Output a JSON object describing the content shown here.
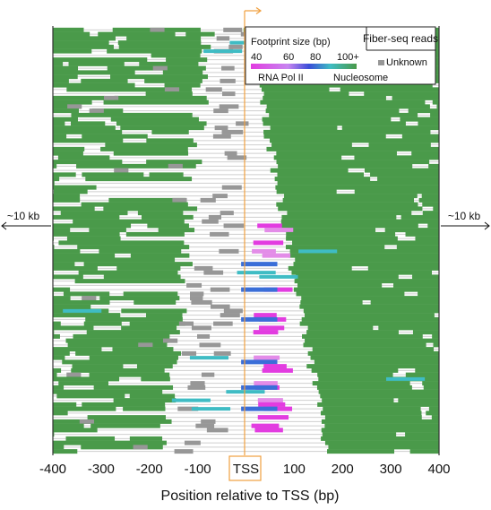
{
  "chart_data": {
    "type": "track_plot",
    "xlabel": "Position relative to TSS (bp)",
    "xlim": [
      -400,
      400
    ],
    "x_ticks": [
      -400,
      -300,
      -200,
      -100,
      0,
      100,
      200,
      300,
      400
    ],
    "x_tick_labels": [
      "-400",
      "-300",
      "-200",
      "-100",
      "TSS",
      "100",
      "200",
      "300",
      "400"
    ],
    "flank_left": "~10 kb",
    "flank_right": "~10 kb",
    "legend_title": "Fiber-seq reads",
    "scale_title": "Footprint size (bp)",
    "scale_ticks": [
      "40",
      "60",
      "80",
      "100+"
    ],
    "scale_labels": [
      "RNA Pol II",
      "Nucleosome"
    ],
    "unknown_label": "Unknown",
    "n_reads": 100,
    "colors": {
      "nucleosome": "#4a9a4a",
      "pol2": "#e23ce0",
      "pol2_light": "#e38ce8",
      "mid_blue": "#3a6ed8",
      "teal": "#3fbcc4",
      "unknown": "#979797",
      "read_line": "#cfcfcf",
      "tss_box": "#f0a040"
    }
  }
}
